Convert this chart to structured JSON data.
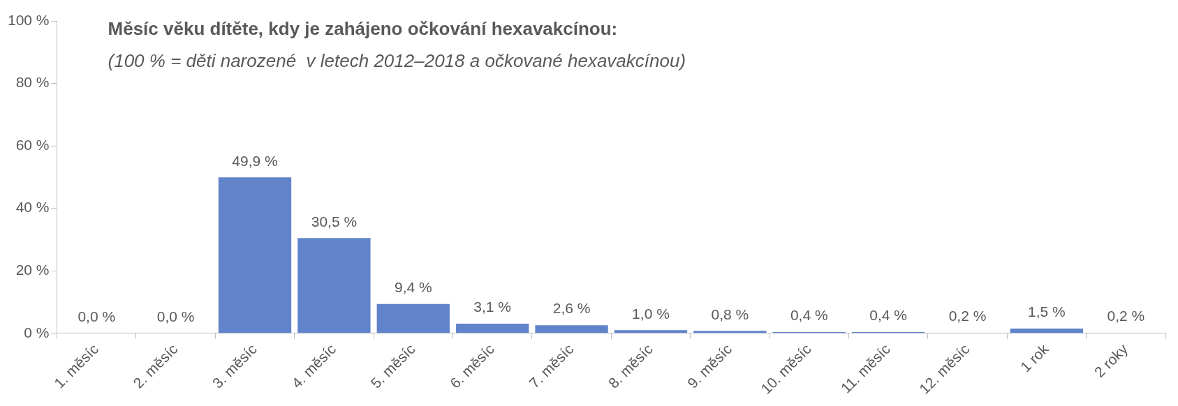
{
  "chart_data": {
    "type": "bar",
    "title": "Měsíc věku dítěte, kdy je zahájeno očkování hexavakcínou:",
    "subtitle": "(100 % = děti narozené  v letech 2012–2018 a očkované hexavakcínou)",
    "categories": [
      "1. měsíc",
      "2. měsíc",
      "3. měsíc",
      "4. měsíc",
      "5. měsíc",
      "6. měsíc",
      "7. měsíc",
      "8. měsíc",
      "9. měsíc",
      "10. měsíc",
      "11. měsíc",
      "12. měsíc",
      "1 rok",
      "2 roky"
    ],
    "values": [
      0.0,
      0.0,
      49.9,
      30.5,
      9.4,
      3.1,
      2.6,
      1.0,
      0.8,
      0.4,
      0.4,
      0.2,
      1.5,
      0.2
    ],
    "value_labels": [
      "0,0 %",
      "0,0 %",
      "49,9 %",
      "30,5 %",
      "9,4 %",
      "3,1 %",
      "2,6 %",
      "1,0 %",
      "0,8 %",
      "0,4 %",
      "0,4 %",
      "0,2 %",
      "1,5 %",
      "0,2 %"
    ],
    "color": "#6183ca",
    "ylim": [
      0,
      100
    ],
    "yticks": [
      {
        "value": 0,
        "label": "0 %"
      },
      {
        "value": 20,
        "label": "20 %"
      },
      {
        "value": 40,
        "label": "40 %"
      },
      {
        "value": 60,
        "label": "60 %"
      },
      {
        "value": 80,
        "label": "80 %"
      },
      {
        "value": 100,
        "label": "100 %"
      }
    ],
    "grid": false,
    "legend": false
  }
}
